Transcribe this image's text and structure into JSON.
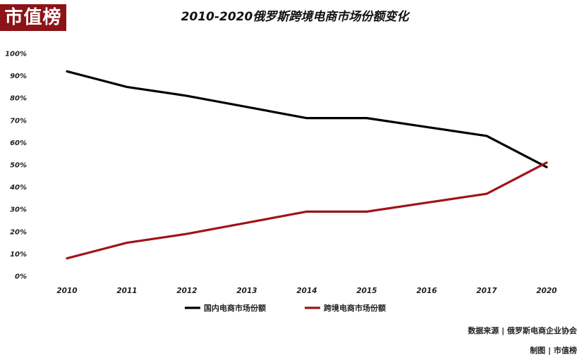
{
  "logo": {
    "text": "市值榜"
  },
  "chart_data": {
    "type": "line",
    "title": "2010-2020俄罗斯跨境电商市场份额变化",
    "categories": [
      "2010",
      "2011",
      "2012",
      "2013",
      "2014",
      "2015",
      "2016",
      "2017",
      "2020"
    ],
    "y_ticks": [
      "0%",
      "10%",
      "20%",
      "30%",
      "40%",
      "50%",
      "60%",
      "70%",
      "80%",
      "90%",
      "100%"
    ],
    "ylim": [
      0,
      100
    ],
    "grid": false,
    "legend_position": "bottom",
    "series": [
      {
        "name": "国内电商市场份额",
        "color": "#000000",
        "values": [
          92,
          85,
          81,
          76,
          71,
          71,
          67,
          63,
          49
        ]
      },
      {
        "name": "跨境电商市场份额",
        "color": "#a01418",
        "values": [
          8,
          15,
          19,
          24,
          29,
          29,
          33,
          37,
          51
        ]
      }
    ]
  },
  "footer": {
    "source": "数据来源 | 俄罗斯电商企业协会",
    "maker": "制图 | 市值榜"
  }
}
